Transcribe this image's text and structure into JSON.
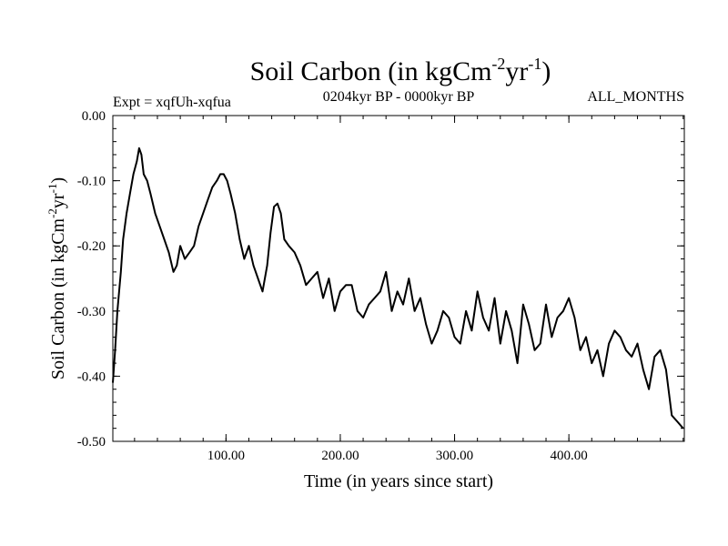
{
  "chart_data": {
    "type": "line",
    "title": "Soil Carbon (in kgCm",
    "title_sup1": "-2",
    "title_mid": "yr",
    "title_sup2": "-1",
    "title_end": ")",
    "expt_label": "Expt = xqfUh-xqfua",
    "period_label": "0204kyr BP - 0000kyr BP",
    "months_label": "ALL_MONTHS",
    "xlabel": "Time (in years since start)",
    "ylabel": "Soil Carbon (in kgCm",
    "ylabel_sup1": "-2",
    "ylabel_mid": "yr",
    "ylabel_sup2": "-1",
    "ylabel_end": ")",
    "xlim": [
      1,
      501
    ],
    "ylim": [
      -0.5,
      0.0
    ],
    "x_ticks": [
      100,
      200,
      300,
      400
    ],
    "x_tick_labels": [
      "100.00",
      "200.00",
      "300.00",
      "400.00"
    ],
    "y_ticks": [
      0.0,
      -0.1,
      -0.2,
      -0.3,
      -0.4,
      -0.5
    ],
    "y_tick_labels": [
      "0.00",
      "-0.10",
      "-0.20",
      "-0.30",
      "-0.40",
      "-0.50"
    ],
    "line_color": "#000000",
    "series": [
      {
        "name": "Soil Carbon",
        "x": [
          1,
          3,
          5,
          8,
          10,
          13,
          16,
          19,
          22,
          24,
          26,
          28,
          31,
          34,
          38,
          42,
          46,
          50,
          54,
          57,
          60,
          64,
          68,
          72,
          76,
          80,
          84,
          88,
          92,
          95,
          98,
          101,
          104,
          108,
          112,
          116,
          120,
          124,
          128,
          132,
          136,
          139,
          142,
          145,
          148,
          151,
          155,
          160,
          165,
          170,
          175,
          180,
          185,
          190,
          195,
          200,
          205,
          210,
          215,
          220,
          225,
          230,
          235,
          240,
          245,
          250,
          255,
          260,
          265,
          270,
          275,
          280,
          285,
          290,
          295,
          300,
          305,
          310,
          315,
          320,
          325,
          330,
          335,
          340,
          345,
          350,
          355,
          360,
          365,
          370,
          375,
          380,
          385,
          390,
          395,
          400,
          405,
          410,
          415,
          420,
          425,
          430,
          435,
          440,
          445,
          450,
          455,
          460,
          465,
          470,
          475,
          480,
          485,
          490,
          495,
          500
        ],
        "y": [
          -0.41,
          -0.36,
          -0.3,
          -0.24,
          -0.19,
          -0.15,
          -0.12,
          -0.09,
          -0.07,
          -0.05,
          -0.06,
          -0.09,
          -0.1,
          -0.12,
          -0.15,
          -0.17,
          -0.19,
          -0.21,
          -0.24,
          -0.23,
          -0.2,
          -0.22,
          -0.21,
          -0.2,
          -0.17,
          -0.15,
          -0.13,
          -0.11,
          -0.1,
          -0.09,
          -0.09,
          -0.1,
          -0.12,
          -0.15,
          -0.19,
          -0.22,
          -0.2,
          -0.23,
          -0.25,
          -0.27,
          -0.23,
          -0.18,
          -0.14,
          -0.135,
          -0.15,
          -0.19,
          -0.2,
          -0.21,
          -0.23,
          -0.26,
          -0.25,
          -0.24,
          -0.28,
          -0.25,
          -0.3,
          -0.27,
          -0.26,
          -0.26,
          -0.3,
          -0.31,
          -0.29,
          -0.28,
          -0.27,
          -0.24,
          -0.3,
          -0.27,
          -0.29,
          -0.25,
          -0.3,
          -0.28,
          -0.32,
          -0.35,
          -0.33,
          -0.3,
          -0.31,
          -0.34,
          -0.35,
          -0.3,
          -0.33,
          -0.27,
          -0.31,
          -0.33,
          -0.28,
          -0.35,
          -0.3,
          -0.33,
          -0.38,
          -0.29,
          -0.32,
          -0.36,
          -0.35,
          -0.29,
          -0.34,
          -0.31,
          -0.3,
          -0.28,
          -0.31,
          -0.36,
          -0.34,
          -0.38,
          -0.36,
          -0.4,
          -0.35,
          -0.33,
          -0.34,
          -0.36,
          -0.37,
          -0.35,
          -0.39,
          -0.42,
          -0.37,
          -0.36,
          -0.39,
          -0.46,
          -0.47,
          -0.48
        ]
      }
    ]
  }
}
